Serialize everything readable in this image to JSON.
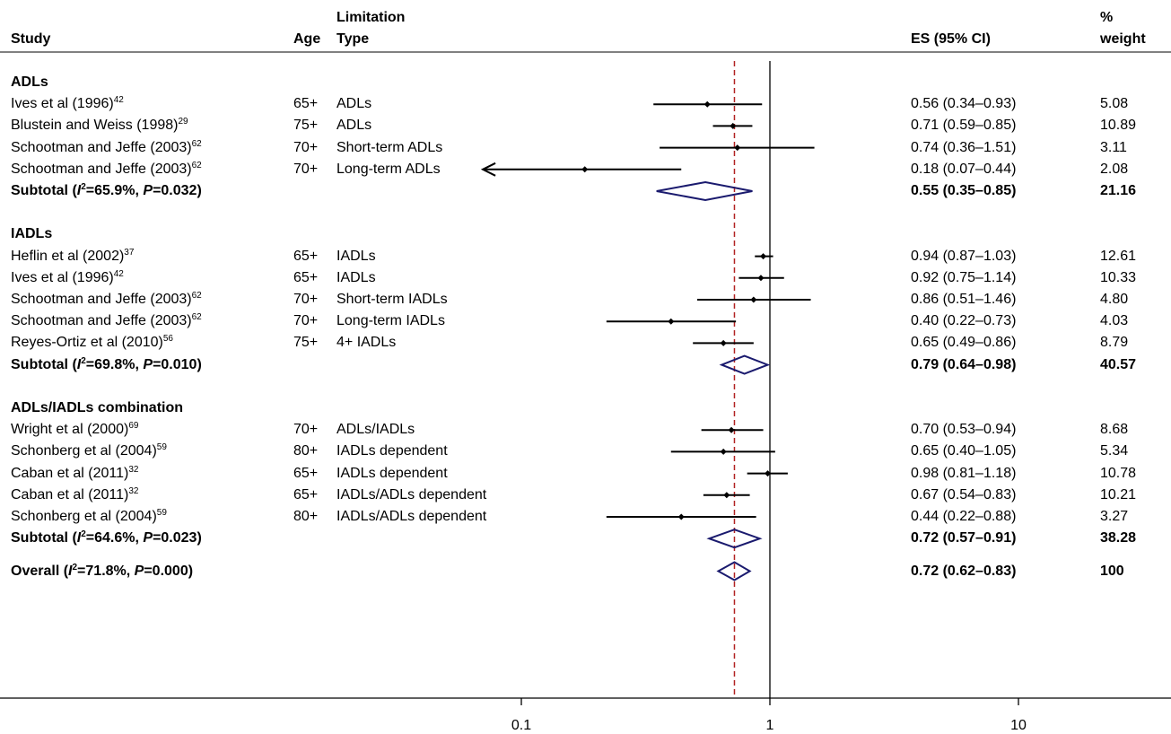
{
  "headers": {
    "study": "Study",
    "age": "Age",
    "limitation_line1": "Limitation",
    "limitation_line2": "Type",
    "es": "ES (95% CI)",
    "weight_line1": "%",
    "weight_line2": "weight"
  },
  "chart_data": {
    "type": "forest",
    "x_scale": "log",
    "xlim": [
      0.02,
      25
    ],
    "x_ticks": [
      "0.1",
      "1",
      "10"
    ],
    "null_line": 1,
    "overall_line": 0.72,
    "groups": [
      {
        "name": "ADLs",
        "studies": [
          {
            "study": "Ives et al (1996)",
            "ref": "42",
            "age": "65+",
            "type": "ADLs",
            "es": 0.56,
            "lo": 0.34,
            "hi": 0.93,
            "es_text": "0.56 (0.34–0.93)",
            "weight": "5.08"
          },
          {
            "study": "Blustein and Weiss (1998)",
            "ref": "29",
            "age": "75+",
            "type": "ADLs",
            "es": 0.71,
            "lo": 0.59,
            "hi": 0.85,
            "es_text": "0.71 (0.59–0.85)",
            "weight": "10.89"
          },
          {
            "study": "Schootman and Jeffe (2003)",
            "ref": "62",
            "age": "70+",
            "type": "Short-term ADLs",
            "es": 0.74,
            "lo": 0.36,
            "hi": 1.51,
            "es_text": "0.74 (0.36–1.51)",
            "weight": "3.11"
          },
          {
            "study": "Schootman and Jeffe (2003)",
            "ref": "62",
            "age": "70+",
            "type": "Long-term ADLs",
            "es": 0.18,
            "lo": 0.07,
            "hi": 0.44,
            "es_text": "0.18 (0.07–0.44)",
            "weight": "2.08",
            "arrow_left": true
          }
        ],
        "subtotal": {
          "label_pre": "Subtotal (",
          "i2": "I",
          "label_mid": "=65.9%, ",
          "p": "P",
          "label_post": "=0.032)",
          "es": 0.55,
          "lo": 0.35,
          "hi": 0.85,
          "es_text": "0.55 (0.35–0.85)",
          "weight": "21.16"
        }
      },
      {
        "name": "IADLs",
        "studies": [
          {
            "study": "Heflin et al (2002)",
            "ref": "37",
            "age": "65+",
            "type": "IADLs",
            "es": 0.94,
            "lo": 0.87,
            "hi": 1.03,
            "es_text": "0.94 (0.87–1.03)",
            "weight": "12.61"
          },
          {
            "study": "Ives et al (1996)",
            "ref": "42",
            "age": "65+",
            "type": "IADLs",
            "es": 0.92,
            "lo": 0.75,
            "hi": 1.14,
            "es_text": "0.92 (0.75–1.14)",
            "weight": "10.33"
          },
          {
            "study": "Schootman and Jeffe (2003)",
            "ref": "62",
            "age": "70+",
            "type": "Short-term IADLs",
            "es": 0.86,
            "lo": 0.51,
            "hi": 1.46,
            "es_text": "0.86 (0.51–1.46)",
            "weight": "4.80"
          },
          {
            "study": "Schootman and Jeffe (2003)",
            "ref": "62",
            "age": "70+",
            "type": "Long-term IADLs",
            "es": 0.4,
            "lo": 0.22,
            "hi": 0.73,
            "es_text": "0.40 (0.22–0.73)",
            "weight": "4.03"
          },
          {
            "study": "Reyes-Ortiz et al (2010)",
            "ref": "56",
            "age": "75+",
            "type": "4+ IADLs",
            "es": 0.65,
            "lo": 0.49,
            "hi": 0.86,
            "es_text": "0.65 (0.49–0.86)",
            "weight": "8.79"
          }
        ],
        "subtotal": {
          "label_pre": "Subtotal (",
          "i2": "I",
          "label_mid": "=69.8%, ",
          "p": "P",
          "label_post": "=0.010)",
          "es": 0.79,
          "lo": 0.64,
          "hi": 0.98,
          "es_text": "0.79 (0.64–0.98)",
          "weight": "40.57"
        }
      },
      {
        "name": "ADLs/IADLs combination",
        "studies": [
          {
            "study": "Wright et al (2000)",
            "ref": "69",
            "age": "70+",
            "type": "ADLs/IADLs",
            "es": 0.7,
            "lo": 0.53,
            "hi": 0.94,
            "es_text": "0.70 (0.53–0.94)",
            "weight": "8.68"
          },
          {
            "study": "Schonberg et al (2004)",
            "ref": "59",
            "age": "80+",
            "type": "IADLs dependent",
            "es": 0.65,
            "lo": 0.4,
            "hi": 1.05,
            "es_text": "0.65 (0.40–1.05)",
            "weight": "5.34"
          },
          {
            "study": "Caban et al (2011)",
            "ref": "32",
            "age": "65+",
            "type": "IADLs dependent",
            "es": 0.98,
            "lo": 0.81,
            "hi": 1.18,
            "es_text": "0.98 (0.81–1.18)",
            "weight": "10.78"
          },
          {
            "study": "Caban et al (2011)",
            "ref": "32",
            "age": "65+",
            "type": "IADLs/ADLs dependent",
            "es": 0.67,
            "lo": 0.54,
            "hi": 0.83,
            "es_text": "0.67 (0.54–0.83)",
            "weight": "10.21"
          },
          {
            "study": "Schonberg et al (2004)",
            "ref": "59",
            "age": "80+",
            "type": "IADLs/ADLs dependent",
            "es": 0.44,
            "lo": 0.22,
            "hi": 0.88,
            "es_text": "0.44 (0.22–0.88)",
            "weight": "3.27"
          }
        ],
        "subtotal": {
          "label_pre": "Subtotal (",
          "i2": "I",
          "label_mid": "=64.6%, ",
          "p": "P",
          "label_post": "=0.023)",
          "es": 0.72,
          "lo": 0.57,
          "hi": 0.91,
          "es_text": "0.72 (0.57–0.91)",
          "weight": "38.28"
        }
      }
    ],
    "overall": {
      "label_pre": "Overall (",
      "i2": "I",
      "label_mid": "=71.8%, ",
      "p": "P",
      "label_post": "=0.000)",
      "es": 0.72,
      "lo": 0.62,
      "hi": 0.83,
      "es_text": "0.72 (0.62–0.83)",
      "weight": "100"
    },
    "colors": {
      "diamond": "#1a1a6e",
      "overall_line": "#b22222",
      "marks": "#000000"
    }
  }
}
